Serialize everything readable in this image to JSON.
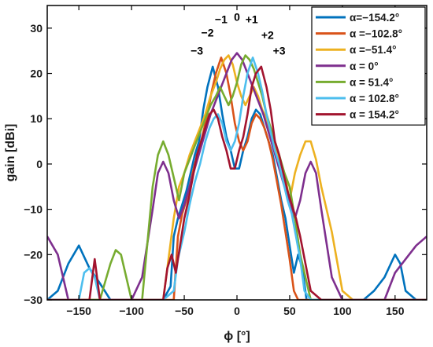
{
  "chart_data": {
    "type": "line",
    "xlabel": "ϕ [°]",
    "ylabel": "gain [dBi]",
    "xlim": [
      -180,
      180
    ],
    "ylim": [
      -30,
      35
    ],
    "xticks": [
      -150,
      -100,
      -50,
      0,
      50,
      100,
      150
    ],
    "yticks": [
      -30,
      -20,
      -10,
      0,
      10,
      20,
      30
    ],
    "grid": false,
    "legend_position": "top-right",
    "series": [
      {
        "name": "α=−154.2°",
        "color": "#0072BD",
        "main_lobe_deg": -23,
        "main_lobe_gain_dbi": 21.5,
        "x": [
          -180,
          -170,
          -160,
          -150,
          -140,
          -131,
          -120,
          -110,
          -100,
          -90,
          -80,
          -70,
          -63,
          -60,
          -56,
          -52,
          -48,
          -44,
          -40,
          -36,
          -32,
          -28,
          -23,
          -18,
          -14,
          -10,
          -6,
          -2,
          2,
          6,
          10,
          14,
          18,
          22,
          26,
          30,
          34,
          38,
          42,
          46,
          50,
          54,
          58,
          62,
          66,
          70,
          80,
          90,
          100,
          110,
          120,
          130,
          140,
          150,
          155,
          160,
          170,
          180
        ],
        "y": [
          -30,
          -28,
          -22,
          -18,
          -23,
          -26,
          -30,
          -30,
          -30,
          -30,
          -30,
          -30,
          -27,
          -16,
          -12,
          -9,
          -6,
          -2,
          2,
          5,
          12,
          17,
          21.5,
          17,
          11,
          6,
          3,
          -1,
          -1,
          3,
          6,
          10,
          12,
          11,
          8,
          5,
          2,
          -3,
          -8,
          -12,
          -18,
          -24,
          -20,
          -23,
          -30,
          -30,
          -30,
          -30,
          -30,
          -30,
          -30,
          -28,
          -25,
          -20,
          -22,
          -28,
          -30,
          -30
        ]
      },
      {
        "name": "α =−102.8°",
        "color": "#D95319",
        "main_lobe_deg": -15,
        "main_lobe_gain_dbi": 23.5,
        "x": [
          -180,
          -170,
          -160,
          -150,
          -140,
          -130,
          -120,
          -110,
          -100,
          -90,
          -80,
          -70,
          -60,
          -56,
          -52,
          -48,
          -44,
          -40,
          -36,
          -32,
          -28,
          -24,
          -20,
          -15,
          -10,
          -6,
          -2,
          2,
          6,
          10,
          14,
          18,
          22,
          26,
          30,
          34,
          38,
          42,
          46,
          50,
          54,
          58,
          62,
          66,
          70,
          80,
          90,
          100,
          110,
          120,
          130,
          140,
          150,
          160,
          170,
          180
        ],
        "y": [
          -30,
          -30,
          -30,
          -30,
          -30,
          -30,
          -30,
          -30,
          -30,
          -30,
          -30,
          -30,
          -30,
          -16,
          -11,
          -8,
          -4,
          0,
          3,
          7,
          11,
          16,
          20,
          23.5,
          20,
          15,
          9,
          5,
          3,
          5,
          9,
          11,
          10,
          8,
          5,
          1,
          -4,
          -9,
          -15,
          -21,
          -28,
          -30,
          -30,
          -30,
          -30,
          -30,
          -30,
          -30,
          -30,
          -30,
          -30,
          -30,
          -30,
          -30,
          -30,
          -30
        ]
      },
      {
        "name": "α =−51.4°",
        "color": "#EDB120",
        "main_lobe_deg": -8,
        "main_lobe_gain_dbi": 24,
        "x": [
          -180,
          -170,
          -160,
          -150,
          -140,
          -130,
          -120,
          -110,
          -100,
          -90,
          -80,
          -70,
          -60,
          -55,
          -50,
          -45,
          -40,
          -35,
          -30,
          -25,
          -20,
          -16,
          -12,
          -8,
          -4,
          0,
          4,
          8,
          12,
          16,
          20,
          24,
          28,
          32,
          36,
          40,
          45,
          50,
          55,
          60,
          65,
          70,
          75,
          80,
          90,
          100,
          110,
          120,
          130,
          140,
          150,
          160,
          170,
          180
        ],
        "y": [
          -30,
          -30,
          -30,
          -30,
          -30,
          -30,
          -30,
          -30,
          -30,
          -30,
          -30,
          -30,
          -12,
          -5,
          -2,
          2,
          5,
          8,
          11,
          15,
          18,
          21,
          23,
          24,
          22,
          18,
          15,
          13,
          15,
          17,
          15,
          12,
          10,
          7,
          4,
          1,
          -2,
          -8,
          -2,
          2,
          5,
          5,
          1,
          -5,
          -15,
          -28,
          -30,
          -30,
          -30,
          -30,
          -30,
          -30,
          -30,
          -30
        ]
      },
      {
        "name": "α =   0°",
        "color": "#7E2F8E",
        "main_lobe_deg": 0,
        "main_lobe_gain_dbi": 24.5,
        "x": [
          -180,
          -170,
          -160,
          -150,
          -140,
          -130,
          -120,
          -110,
          -100,
          -90,
          -80,
          -75,
          -70,
          -65,
          -60,
          -55,
          -50,
          -45,
          -40,
          -35,
          -30,
          -25,
          -20,
          -15,
          -10,
          -5,
          0,
          5,
          10,
          15,
          20,
          25,
          30,
          35,
          40,
          45,
          50,
          55,
          60,
          65,
          70,
          75,
          80,
          90,
          100,
          110,
          120,
          130,
          140,
          150,
          160,
          170,
          180
        ],
        "y": [
          -16,
          -20,
          -30,
          -30,
          -30,
          -30,
          -30,
          -30,
          -30,
          -25,
          -10,
          -2,
          0.5,
          -2,
          -8,
          -12,
          -9,
          -5,
          -1,
          3,
          7,
          11,
          14,
          17,
          20,
          23,
          24.5,
          23,
          20,
          17,
          14,
          11,
          7,
          3,
          -1,
          -5,
          -9,
          -12,
          -8,
          -2,
          0.5,
          -2,
          -10,
          -25,
          -30,
          -30,
          -30,
          -30,
          -30,
          -24,
          -21,
          -18,
          -16
        ]
      },
      {
        "name": "α =  51.4°",
        "color": "#77AC30",
        "main_lobe_deg": 8,
        "main_lobe_gain_dbi": 24,
        "x": [
          -180,
          -170,
          -160,
          -150,
          -140,
          -130,
          -120,
          -115,
          -110,
          -100,
          -90,
          -80,
          -75,
          -70,
          -65,
          -60,
          -55,
          -50,
          -45,
          -40,
          -35,
          -30,
          -25,
          -20,
          -16,
          -12,
          -8,
          -4,
          0,
          4,
          8,
          12,
          16,
          20,
          24,
          28,
          32,
          36,
          40,
          45,
          50,
          55,
          60,
          70,
          80,
          90,
          100,
          110,
          120,
          130,
          140,
          150,
          160,
          170,
          180
        ],
        "y": [
          -30,
          -30,
          -30,
          -30,
          -30,
          -30,
          -22,
          -19,
          -20,
          -30,
          -30,
          -5,
          2,
          5,
          2,
          -3,
          -8,
          -2,
          1,
          4,
          7,
          10,
          13,
          15,
          17,
          15,
          13,
          15,
          18,
          22,
          24,
          23,
          21,
          18,
          15,
          11,
          8,
          5,
          2,
          -2,
          -5,
          -12,
          -20,
          -30,
          -30,
          -30,
          -30,
          -30,
          -30,
          -30,
          -30,
          -30,
          -30,
          -30,
          -30
        ]
      },
      {
        "name": "α = 102.8°",
        "color": "#4DBEEE",
        "main_lobe_deg": 15,
        "main_lobe_gain_dbi": 23.5,
        "x": [
          -180,
          -170,
          -160,
          -150,
          -145,
          -140,
          -135,
          -130,
          -120,
          -110,
          -100,
          -90,
          -80,
          -70,
          -60,
          -56,
          -50,
          -45,
          -40,
          -35,
          -30,
          -26,
          -22,
          -18,
          -14,
          -10,
          -6,
          -2,
          2,
          6,
          10,
          15,
          20,
          24,
          28,
          32,
          36,
          40,
          44,
          48,
          52,
          56,
          60,
          64,
          70,
          80,
          90,
          100,
          110,
          120,
          130,
          140,
          150,
          160,
          170,
          180
        ],
        "y": [
          -30,
          -30,
          -30,
          -30,
          -24,
          -23,
          -25,
          -30,
          -30,
          -30,
          -30,
          -30,
          -30,
          -30,
          -28,
          -21,
          -15,
          -9,
          -4,
          0,
          5,
          8,
          10,
          11,
          9,
          5,
          3,
          5,
          9,
          15,
          20,
          23.5,
          20,
          16,
          11,
          7,
          3,
          0,
          -4,
          -8,
          -11,
          -16,
          -21,
          -28,
          -30,
          -30,
          -30,
          -30,
          -30,
          -30,
          -30,
          -30,
          -30,
          -30,
          -30,
          -30
        ]
      },
      {
        "name": "α = 154.2°",
        "color": "#A2142F",
        "main_lobe_deg": 23,
        "main_lobe_gain_dbi": 21.5,
        "x": [
          -180,
          -170,
          -160,
          -150,
          -140,
          -135,
          -130,
          -120,
          -110,
          -100,
          -90,
          -80,
          -70,
          -66,
          -62,
          -58,
          -54,
          -50,
          -46,
          -42,
          -38,
          -34,
          -30,
          -26,
          -22,
          -18,
          -14,
          -10,
          -6,
          -2,
          2,
          6,
          10,
          14,
          18,
          23,
          28,
          32,
          36,
          40,
          44,
          48,
          52,
          56,
          60,
          70,
          80,
          90,
          100,
          110,
          120,
          130,
          140,
          150,
          160,
          170,
          180
        ],
        "y": [
          -30,
          -30,
          -30,
          -30,
          -30,
          -21,
          -30,
          -30,
          -30,
          -30,
          -30,
          -30,
          -30,
          -23,
          -20,
          -24,
          -18,
          -12,
          -8,
          -3,
          2,
          5,
          8,
          11,
          12,
          10,
          6,
          3,
          -1,
          -1,
          3,
          6,
          11,
          17,
          20,
          21.5,
          17,
          12,
          5,
          2,
          -2,
          -6,
          -9,
          -12,
          -16,
          -28,
          -30,
          -30,
          -30,
          -30,
          -30,
          -30,
          -30,
          -30,
          -30,
          -30,
          -30
        ]
      }
    ],
    "annotations": [
      {
        "text": "−3",
        "x": -38,
        "y": 25
      },
      {
        "text": "−2",
        "x": -28,
        "y": 29
      },
      {
        "text": "−1",
        "x": -15,
        "y": 32
      },
      {
        "text": "0",
        "x": 0,
        "y": 32.5
      },
      {
        "text": "+1",
        "x": 14,
        "y": 32
      },
      {
        "text": "+2",
        "x": 29,
        "y": 28.5
      },
      {
        "text": "+3",
        "x": 40,
        "y": 25
      }
    ]
  }
}
